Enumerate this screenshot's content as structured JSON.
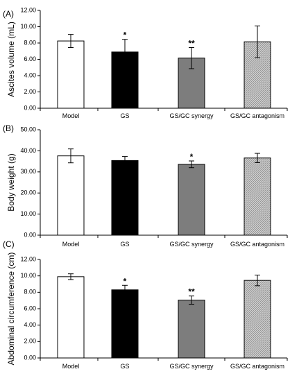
{
  "colors": {
    "model": "#ffffff",
    "gs": "#000000",
    "synergy": "#7d7d7d",
    "antagonism": "#c4c4c4",
    "axis": "#000000"
  },
  "chart_data": [
    {
      "type": "bar",
      "panel_label": "(A)",
      "ylabel": "Ascites volume (mL)",
      "categories": [
        "Model",
        "GS",
        "GS/GC synergy",
        "GS/GC antagonism"
      ],
      "values": [
        8.25,
        6.9,
        6.15,
        8.15
      ],
      "errors": [
        0.8,
        1.55,
        1.3,
        1.95
      ],
      "significance": [
        "",
        "*",
        "**",
        ""
      ],
      "ylim": [
        0,
        12
      ],
      "yticks": [
        "0.00",
        "2.00",
        "4.00",
        "6.00",
        "8.00",
        "10.00",
        "12.00"
      ],
      "grid": false,
      "legend": "none"
    },
    {
      "type": "bar",
      "panel_label": "(B)",
      "ylabel": "Body weight (g)",
      "categories": [
        "Model",
        "GS",
        "GS/GC synergy",
        "GS/GC antagonism"
      ],
      "values": [
        37.6,
        35.4,
        33.6,
        36.6
      ],
      "errors": [
        3.3,
        1.9,
        1.6,
        2.2
      ],
      "significance": [
        "",
        "",
        "*",
        ""
      ],
      "ylim": [
        0,
        50
      ],
      "yticks": [
        "0.00",
        "10.00",
        "20.00",
        "30.00",
        "40.00",
        "50.00"
      ],
      "grid": false,
      "legend": "none"
    },
    {
      "type": "bar",
      "panel_label": "(C)",
      "ylabel": "Abdominal circumference (cm)",
      "categories": [
        "Model",
        "GS",
        "GS/GC synergy",
        "GS/GC antagonism"
      ],
      "values": [
        9.9,
        8.3,
        7.05,
        9.45
      ],
      "errors": [
        0.35,
        0.55,
        0.5,
        0.65
      ],
      "significance": [
        "",
        "*",
        "**",
        ""
      ],
      "ylim": [
        0,
        12
      ],
      "yticks": [
        "0.00",
        "2.00",
        "4.00",
        "6.00",
        "8.00",
        "10.00",
        "12.00"
      ],
      "grid": false,
      "legend": "none"
    }
  ]
}
